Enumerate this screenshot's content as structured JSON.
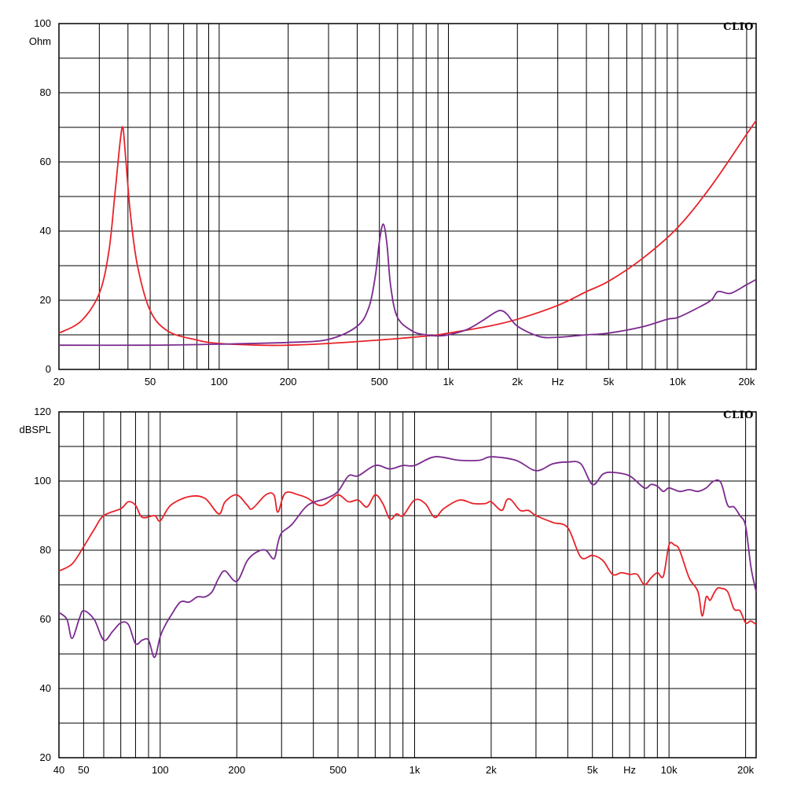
{
  "chart_data": [
    {
      "type": "line",
      "brand": "CLIO",
      "ylabel": "Ohm",
      "xlabel": "Hz",
      "x_scale": "log",
      "xlim": [
        20,
        22000
      ],
      "ylim": [
        0,
        100
      ],
      "grid": true,
      "x_tick_labels": [
        {
          "value": 20,
          "label": "20"
        },
        {
          "value": 50,
          "label": "50"
        },
        {
          "value": 100,
          "label": "100"
        },
        {
          "value": 200,
          "label": "200"
        },
        {
          "value": 500,
          "label": "500"
        },
        {
          "value": 1000,
          "label": "1k"
        },
        {
          "value": 2000,
          "label": "2k"
        },
        {
          "value": 3000,
          "label": "Hz"
        },
        {
          "value": 5000,
          "label": "5k"
        },
        {
          "value": 10000,
          "label": "10k"
        },
        {
          "value": 20000,
          "label": "20k"
        }
      ],
      "y_tick_labels": [
        {
          "value": 0,
          "label": "0"
        },
        {
          "value": 20,
          "label": "20"
        },
        {
          "value": 40,
          "label": "40"
        },
        {
          "value": 60,
          "label": "60"
        },
        {
          "value": 80,
          "label": "80"
        },
        {
          "value": 100,
          "label": "100"
        }
      ],
      "series": [
        {
          "color": "#e8232a",
          "x": [
            20,
            25,
            30,
            33,
            35,
            37,
            38,
            39,
            41,
            44,
            50,
            60,
            80,
            100,
            150,
            200,
            300,
            500,
            700,
            900,
            1000,
            1500,
            2000,
            3000,
            4000,
            5000,
            7000,
            10000,
            14000,
            20000,
            22000
          ],
          "y": [
            10.5,
            14,
            22,
            34,
            50,
            66,
            70,
            62,
            45,
            30,
            17,
            11,
            8.5,
            7.5,
            7,
            7,
            7.5,
            8.5,
            9.3,
            10,
            10.5,
            12.5,
            14.5,
            18.5,
            22.5,
            25.5,
            32,
            41,
            53,
            68,
            72
          ]
        },
        {
          "color": "#7b2a8e",
          "x": [
            20,
            50,
            100,
            200,
            300,
            400,
            450,
            480,
            500,
            520,
            540,
            560,
            600,
            700,
            800,
            900,
            1000,
            1200,
            1400,
            1600,
            1700,
            1800,
            2000,
            2500,
            3000,
            4000,
            5000,
            7000,
            9000,
            10000,
            12000,
            14000,
            15000,
            17000,
            20000,
            22000
          ],
          "y": [
            7,
            7,
            7.3,
            7.8,
            8.7,
            12.5,
            18,
            27,
            37,
            42,
            36,
            24,
            15,
            11,
            10,
            9.7,
            10,
            11.5,
            14,
            16.5,
            17,
            16,
            12.5,
            9.5,
            9.3,
            10,
            10.5,
            12.3,
            14.5,
            15,
            17.5,
            20,
            22.5,
            22,
            24.5,
            26
          ]
        }
      ]
    },
    {
      "type": "line",
      "brand": "CLIO",
      "ylabel": "dBSPL",
      "xlabel": "Hz",
      "x_scale": "log",
      "xlim": [
        40,
        22000
      ],
      "ylim": [
        20,
        120
      ],
      "grid": true,
      "x_tick_labels": [
        {
          "value": 40,
          "label": "40"
        },
        {
          "value": 50,
          "label": "50"
        },
        {
          "value": 100,
          "label": "100"
        },
        {
          "value": 200,
          "label": "200"
        },
        {
          "value": 500,
          "label": "500"
        },
        {
          "value": 1000,
          "label": "1k"
        },
        {
          "value": 2000,
          "label": "2k"
        },
        {
          "value": 5000,
          "label": "5k"
        },
        {
          "value": 7000,
          "label": "Hz"
        },
        {
          "value": 10000,
          "label": "10k"
        },
        {
          "value": 20000,
          "label": "20k"
        }
      ],
      "y_tick_labels": [
        {
          "value": 20,
          "label": "20"
        },
        {
          "value": 40,
          "label": "40"
        },
        {
          "value": 60,
          "label": "60"
        },
        {
          "value": 80,
          "label": "80"
        },
        {
          "value": 100,
          "label": "100"
        },
        {
          "value": 120,
          "label": "120"
        }
      ],
      "series": [
        {
          "color": "#e8232a",
          "x": [
            40,
            45,
            50,
            55,
            60,
            70,
            75,
            80,
            85,
            95,
            100,
            110,
            130,
            150,
            170,
            180,
            200,
            220,
            230,
            260,
            280,
            290,
            310,
            350,
            380,
            420,
            450,
            500,
            550,
            600,
            650,
            700,
            750,
            800,
            850,
            900,
            1000,
            1100,
            1200,
            1300,
            1500,
            1700,
            1900,
            2000,
            2200,
            2300,
            2400,
            2600,
            2800,
            3000,
            3500,
            4000,
            4500,
            5000,
            5500,
            6000,
            6500,
            7000,
            7500,
            8000,
            8500,
            9000,
            9500,
            10000,
            10500,
            11000,
            12000,
            13000,
            13500,
            14000,
            14500,
            15000,
            15500,
            16000,
            17000,
            18000,
            19000,
            20000,
            21000,
            22000
          ],
          "y": [
            74,
            76,
            81,
            86,
            90,
            92,
            94,
            93,
            89.5,
            90,
            88.5,
            93,
            95.5,
            95,
            90.5,
            94,
            96,
            93,
            92,
            96,
            96,
            91,
            96.5,
            96,
            95,
            93,
            93.5,
            96,
            94,
            94.5,
            92.5,
            96,
            93.5,
            89,
            90.5,
            90,
            94.5,
            93.5,
            89.5,
            92,
            94.5,
            93.5,
            93.5,
            94,
            91.5,
            94.5,
            94.5,
            91.5,
            91.5,
            90,
            88,
            86.5,
            78,
            78.5,
            77,
            73,
            73.5,
            73,
            73,
            70,
            72,
            73.5,
            72.5,
            81.5,
            81.5,
            80,
            72,
            68,
            61,
            66.5,
            65.5,
            67.5,
            69,
            69,
            68,
            63,
            62.5,
            59,
            59.5,
            58.5
          ]
        },
        {
          "color": "#7b2a8e",
          "x": [
            40,
            43,
            45,
            48,
            50,
            55,
            60,
            65,
            70,
            75,
            80,
            85,
            90,
            95,
            100,
            105,
            110,
            120,
            130,
            140,
            150,
            160,
            170,
            180,
            200,
            220,
            240,
            260,
            280,
            290,
            300,
            330,
            380,
            450,
            500,
            550,
            600,
            700,
            800,
            900,
            1000,
            1200,
            1500,
            1800,
            2000,
            2500,
            3000,
            3500,
            4000,
            4500,
            5000,
            5500,
            6000,
            7000,
            8000,
            8500,
            9000,
            9500,
            10000,
            11000,
            12000,
            13000,
            14000,
            15000,
            16000,
            17000,
            18000,
            19000,
            20000,
            21000,
            22000
          ],
          "y": [
            62,
            60,
            54.5,
            60,
            62.5,
            60,
            54,
            56.5,
            59,
            58.5,
            53,
            54,
            54,
            49,
            55,
            58.5,
            61,
            65,
            65,
            66.5,
            66.5,
            68,
            72,
            74,
            71,
            77,
            79.5,
            80,
            77.5,
            82,
            85,
            87.5,
            93,
            95,
            97,
            101.5,
            101.5,
            104.5,
            103.5,
            104.5,
            104.5,
            107,
            106,
            106,
            107,
            106,
            103,
            105,
            105.5,
            105,
            99,
            102,
            102.5,
            101.5,
            98,
            99,
            98.5,
            97,
            98,
            97,
            97.5,
            97,
            98,
            100,
            99.5,
            93,
            92.5,
            90,
            87,
            75,
            68
          ]
        }
      ]
    }
  ]
}
